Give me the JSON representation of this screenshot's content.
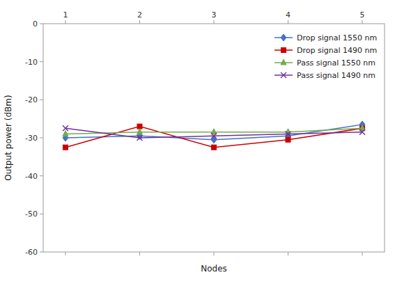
{
  "chart_data": {
    "type": "line",
    "xlabel": "Nodes",
    "ylabel": "Output power (dBm)",
    "x": [
      1,
      2,
      3,
      4,
      5
    ],
    "series": [
      {
        "name": "Drop signal 1550 nm",
        "color": "#4472C4",
        "marker": "diamond",
        "values": [
          -30.0,
          -29.5,
          -30.5,
          -29.5,
          -26.5
        ]
      },
      {
        "name": "Drop signal 1490 nm",
        "color": "#CC0000",
        "marker": "square",
        "values": [
          -32.5,
          -27.0,
          -32.5,
          -30.5,
          -27.5
        ]
      },
      {
        "name": "Pass signal 1550 nm",
        "color": "#70AD47",
        "marker": "triangle",
        "values": [
          -29.0,
          -28.5,
          -28.5,
          -28.5,
          -27.5
        ]
      },
      {
        "name": "Pass signal 1490 nm",
        "color": "#7030A0",
        "marker": "x",
        "values": [
          -27.5,
          -30.0,
          -29.5,
          -29.0,
          -28.5
        ]
      }
    ],
    "xlim": [
      0.7,
      5.3
    ],
    "xticks": [
      1,
      2,
      3,
      4,
      5
    ],
    "ylim": [
      -60,
      0
    ],
    "yticks": [
      0,
      -10,
      -20,
      -30,
      -40,
      -50,
      -60
    ],
    "grid": false,
    "legend": "upper right"
  }
}
